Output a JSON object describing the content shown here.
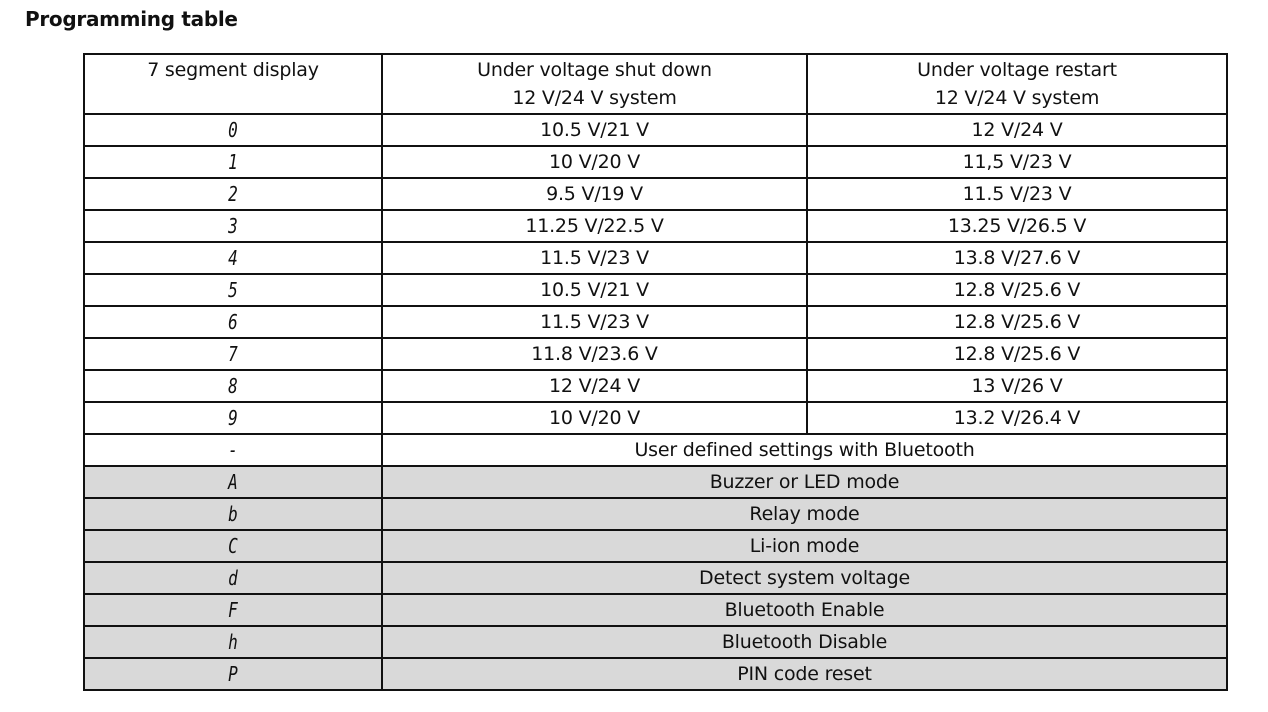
{
  "title": "Programming table",
  "headers": {
    "col1": "7 segment display",
    "col2_line1": "Under voltage shut down",
    "col2_line2": "12 V/24 V system",
    "col3_line1": "Under voltage restart",
    "col3_line2": "12 V/24 V system"
  },
  "voltage_rows": [
    {
      "code": "0",
      "shutdown": "10.5 V/21 V",
      "restart": "12 V/24 V"
    },
    {
      "code": "1",
      "shutdown": "10 V/20 V",
      "restart": "11,5 V/23 V"
    },
    {
      "code": "2",
      "shutdown": "9.5 V/19 V",
      "restart": "11.5 V/23 V"
    },
    {
      "code": "3",
      "shutdown": "11.25 V/22.5 V",
      "restart": "13.25 V/26.5 V"
    },
    {
      "code": "4",
      "shutdown": "11.5 V/23 V",
      "restart": "13.8 V/27.6 V"
    },
    {
      "code": "5",
      "shutdown": "10.5 V/21 V",
      "restart": "12.8 V/25.6 V"
    },
    {
      "code": "6",
      "shutdown": "11.5 V/23 V",
      "restart": "12.8 V/25.6 V"
    },
    {
      "code": "7",
      "shutdown": "11.8 V/23.6 V",
      "restart": "12.8 V/25.6 V"
    },
    {
      "code": "8",
      "shutdown": "12 V/24 V",
      "restart": "13 V/26 V"
    },
    {
      "code": "9",
      "shutdown": "10 V/20 V",
      "restart": "13.2 V/26.4 V"
    }
  ],
  "bluetooth_row": {
    "code": "-",
    "text": "User defined settings with Bluetooth"
  },
  "mode_rows": [
    {
      "code": "A",
      "text": "Buzzer or LED mode"
    },
    {
      "code": "b",
      "text": "Relay mode"
    },
    {
      "code": "C",
      "text": "Li-ion mode"
    },
    {
      "code": "d",
      "text": "Detect system voltage"
    },
    {
      "code": "F",
      "text": "Bluetooth Enable"
    },
    {
      "code": "h",
      "text": "Bluetooth Disable"
    },
    {
      "code": "P",
      "text": "PIN code reset"
    }
  ],
  "colors": {
    "mode_row_background": "#d9d9d9",
    "border": "#111111"
  }
}
